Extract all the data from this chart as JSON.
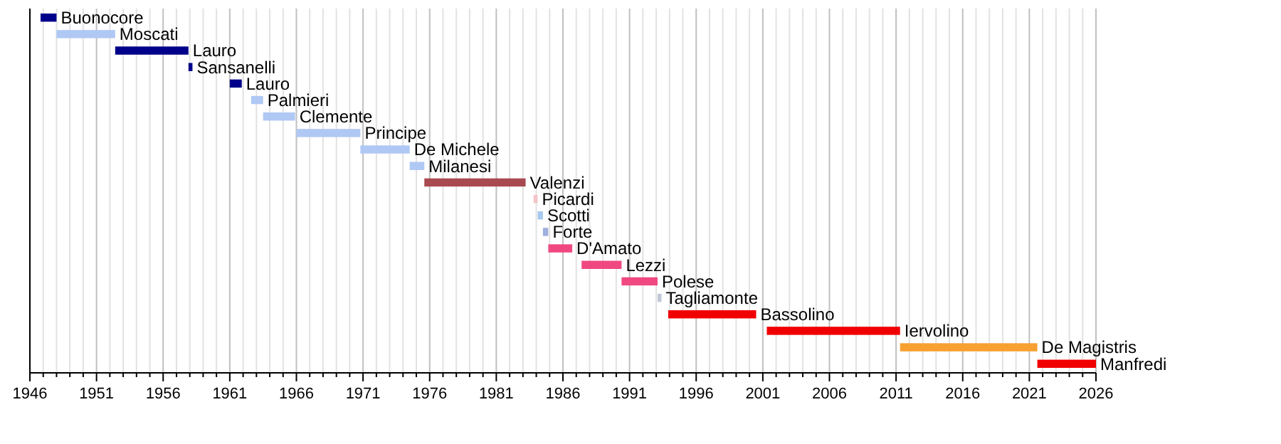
{
  "chart_data": {
    "type": "bar",
    "orientation": "horizontal",
    "grid": "x",
    "tick_labels": "x",
    "categories": [
      "Buonocore",
      "Moscati",
      "Lauro",
      "Sansanelli",
      "Lauro",
      "Palmieri",
      "Clemente",
      "Principe",
      "De Michele",
      "Milanesi",
      "Valenzi",
      "Picardi",
      "Scotti",
      "Forte",
      "D'Amato",
      "Lezzi",
      "Polese",
      "Tagliamonte",
      "Bassolino",
      "Iervolino",
      "De Magistris",
      "Manfredi"
    ],
    "base": [
      1946.8,
      1948.0,
      1952.4,
      1957.9,
      1961.0,
      1962.6,
      1963.5,
      1966.0,
      1970.8,
      1974.5,
      1975.6,
      1983.8,
      1984.1,
      1984.5,
      1984.9,
      1987.4,
      1990.4,
      1993.1,
      1993.9,
      2001.3,
      2011.3,
      2021.6
    ],
    "values": [
      1.2,
      4.4,
      5.5,
      0.3,
      0.9,
      0.9,
      2.4,
      4.8,
      3.7,
      1.1,
      7.6,
      0.3,
      0.4,
      0.4,
      1.8,
      3.0,
      2.7,
      0.3,
      6.6,
      10.0,
      10.3,
      4.4
    ],
    "colors": [
      "#00008b",
      "#b0c8f4",
      "#00008b",
      "#00008b",
      "#00008b",
      "#b0c8f4",
      "#b0c8f4",
      "#b0c8f4",
      "#b0c8f4",
      "#b0c8f4",
      "#a84a50",
      "#f4c4c8",
      "#a8c8f0",
      "#a0b0e0",
      "#f04880",
      "#f04880",
      "#f04880",
      "#c0c8d8",
      "#f00000",
      "#f00000",
      "#f8a030",
      "#f00000"
    ],
    "xlim": [
      1946,
      2026
    ],
    "xticks": [
      1946,
      {
        "value": 1947,
        "label": null
      },
      {
        "value": 1948,
        "label": null
      },
      {
        "value": 1949,
        "label": null
      },
      {
        "value": 1950,
        "label": null
      },
      1951,
      {
        "value": 1952,
        "label": null
      },
      {
        "value": 1953,
        "label": null
      },
      {
        "value": 1954,
        "label": null
      },
      {
        "value": 1955,
        "label": null
      },
      1956,
      {
        "value": 1957,
        "label": null
      },
      {
        "value": 1958,
        "label": null
      },
      {
        "value": 1959,
        "label": null
      },
      {
        "value": 1960,
        "label": null
      },
      1961,
      {
        "value": 1962,
        "label": null
      },
      {
        "value": 1963,
        "label": null
      },
      {
        "value": 1964,
        "label": null
      },
      {
        "value": 1965,
        "label": null
      },
      1966,
      {
        "value": 1967,
        "label": null
      },
      {
        "value": 1968,
        "label": null
      },
      {
        "value": 1969,
        "label": null
      },
      {
        "value": 1970,
        "label": null
      },
      1971,
      {
        "value": 1972,
        "label": null
      },
      {
        "value": 1973,
        "label": null
      },
      {
        "value": 1974,
        "label": null
      },
      {
        "value": 1975,
        "label": null
      },
      1976,
      {
        "value": 1977,
        "label": null
      },
      {
        "value": 1978,
        "label": null
      },
      {
        "value": 1979,
        "label": null
      },
      {
        "value": 1980,
        "label": null
      },
      1981,
      {
        "value": 1982,
        "label": null
      },
      {
        "value": 1983,
        "label": null
      },
      {
        "value": 1984,
        "label": null
      },
      {
        "value": 1985,
        "label": null
      },
      1986,
      {
        "value": 1987,
        "label": null
      },
      {
        "value": 1988,
        "label": null
      },
      {
        "value": 1989,
        "label": null
      },
      {
        "value": 1990,
        "label": null
      },
      1991,
      {
        "value": 1992,
        "label": null
      },
      {
        "value": 1993,
        "label": null
      },
      {
        "value": 1994,
        "label": null
      },
      {
        "value": 1995,
        "label": null
      },
      1996,
      {
        "value": 1997,
        "label": null
      },
      {
        "value": 1998,
        "label": null
      },
      {
        "value": 1999,
        "label": null
      },
      {
        "value": 2000,
        "label": null
      },
      2001,
      {
        "value": 2002,
        "label": null
      },
      {
        "value": 2003,
        "label": null
      },
      {
        "value": 2004,
        "label": null
      },
      {
        "value": 2005,
        "label": null
      },
      2006,
      {
        "value": 2007,
        "label": null
      },
      {
        "value": 2008,
        "label": null
      },
      {
        "value": 2009,
        "label": null
      },
      {
        "value": 2010,
        "label": null
      },
      2011,
      {
        "value": 2012,
        "label": null
      },
      {
        "value": 2013,
        "label": null
      },
      {
        "value": 2014,
        "label": null
      },
      {
        "value": 2015,
        "label": null
      },
      2016,
      {
        "value": 2017,
        "label": null
      },
      {
        "value": 2018,
        "label": null
      },
      {
        "value": 2019,
        "label": null
      },
      {
        "value": 2020,
        "label": null
      },
      2021,
      {
        "value": 2022,
        "label": null
      },
      {
        "value": 2023,
        "label": null
      },
      {
        "value": 2024,
        "label": null
      },
      {
        "value": 2025,
        "label": null
      },
      2026
    ]
  }
}
